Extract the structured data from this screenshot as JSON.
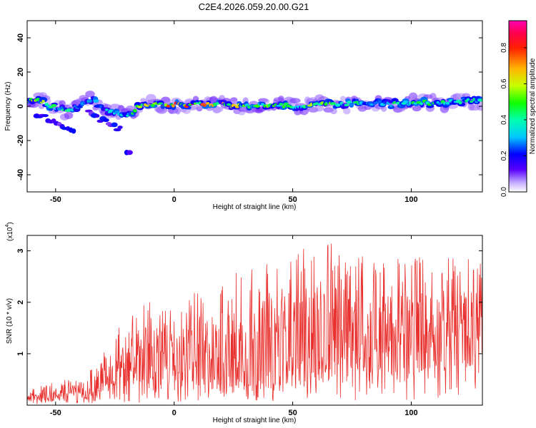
{
  "title": "C2E4.2026.059.20.00.G21",
  "chart_data": [
    {
      "type": "heatmap",
      "title": "C2E4.2026.059.20.00.G21",
      "xlabel": "Height of straight line (km)",
      "ylabel": "Frequency (Hz)",
      "xlim": [
        -62,
        130
      ],
      "ylim": [
        -50,
        50
      ],
      "xticks": [
        -50,
        0,
        50,
        100
      ],
      "yticks": [
        -40,
        -20,
        0,
        20,
        40
      ],
      "ridge": {
        "description": "Frequency band of energy along height",
        "x": [
          -60,
          -55,
          -50,
          -45,
          -40,
          -35,
          -30,
          -25,
          -20,
          -15,
          -10,
          -5,
          0,
          10,
          20,
          30,
          40,
          50,
          60,
          70,
          80,
          90,
          100,
          110,
          120,
          130
        ],
        "y": [
          4,
          2,
          -1,
          -3,
          1,
          4,
          -2,
          -4,
          -6,
          0,
          1,
          1,
          1,
          1,
          1,
          0,
          1,
          0,
          1,
          1,
          2,
          1,
          2,
          2,
          3,
          3
        ],
        "amplitude": [
          0.7,
          0.6,
          0.5,
          0.5,
          0.4,
          0.35,
          0.35,
          0.4,
          0.4,
          0.6,
          0.75,
          0.8,
          0.85,
          0.8,
          0.75,
          0.6,
          0.55,
          0.55,
          0.6,
          0.5,
          0.45,
          0.45,
          0.5,
          0.5,
          0.45,
          0.45
        ]
      },
      "side_branches": [
        {
          "x": [
            -58,
            -52,
            -46,
            -42
          ],
          "y": [
            -5,
            -8,
            -12,
            -14
          ]
        },
        {
          "x": [
            -36,
            -28,
            -22
          ],
          "y": [
            -4,
            -10,
            -14
          ]
        },
        {
          "x": [
            -20,
            -18
          ],
          "y": [
            -26,
            -29
          ]
        }
      ],
      "colorbar": {
        "label": "Normalized spectral amplitude",
        "range": [
          0,
          0.95
        ],
        "ticks": [
          "0.0",
          "0.2",
          "0.4",
          "0.6",
          "0.8"
        ]
      }
    },
    {
      "type": "line",
      "xlabel": "Height of straight line (km)",
      "ylabel": "SNR (10 * v/v)",
      "yscale_label": "(x10",
      "yscale_exp": "4",
      "xlim": [
        -62,
        130
      ],
      "ylim": [
        0,
        3.3
      ],
      "xticks": [
        -50,
        0,
        50,
        100
      ],
      "yticks": [
        1,
        2,
        3
      ],
      "color": "#e8312e",
      "envelope": {
        "x": [
          -62,
          -50,
          -40,
          -35,
          -30,
          -20,
          -10,
          0,
          10,
          20,
          30,
          40,
          50,
          60,
          70,
          80,
          90,
          100,
          110,
          120,
          130
        ],
        "mean": [
          0.15,
          0.2,
          0.25,
          0.35,
          0.6,
          0.9,
          1.0,
          0.9,
          1.0,
          1.05,
          1.1,
          1.2,
          1.35,
          1.4,
          1.45,
          1.45,
          1.35,
          1.4,
          1.45,
          1.5,
          1.45
        ],
        "peak": [
          0.3,
          0.45,
          0.55,
          0.7,
          1.2,
          1.8,
          2.1,
          1.8,
          2.3,
          2.6,
          2.6,
          2.8,
          3.0,
          3.25,
          3.1,
          3.0,
          2.8,
          2.9,
          2.9,
          2.85,
          2.9
        ]
      }
    }
  ]
}
